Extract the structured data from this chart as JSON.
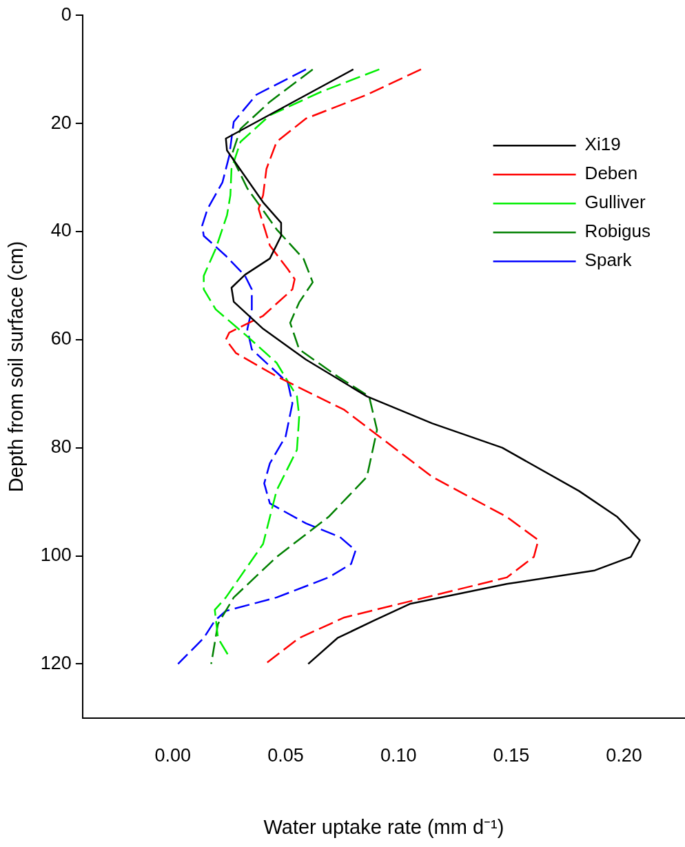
{
  "chart_data": {
    "type": "line",
    "xlabel": "Water uptake rate (mm d⁻¹)",
    "ylabel": "Depth from soil surface (cm)",
    "xlim": [
      -0.04,
      0.227
    ],
    "ylim": [
      130,
      0
    ],
    "xticks": [
      {
        "value": 0,
        "label": "0.00"
      },
      {
        "value": 0.05,
        "label": "0.05"
      },
      {
        "value": 0.1,
        "label": "0.10"
      },
      {
        "value": 0.15,
        "label": "0.15"
      },
      {
        "value": 0.2,
        "label": "0.20"
      }
    ],
    "yticks": [
      0,
      20,
      40,
      60,
      80,
      100,
      120
    ],
    "grid": false,
    "legend": "top right",
    "marker": "none",
    "series": [
      {
        "name": "Xi19",
        "color": "#000000",
        "line_style": "solid",
        "x": [
          0.08,
          0.0235,
          0.024,
          0.04,
          0.048,
          0.048,
          0.043,
          0.032,
          0.026,
          0.027,
          0.04,
          0.059,
          0.086,
          0.115,
          0.146,
          0.18,
          0.197,
          0.207,
          0.203,
          0.187,
          0.148,
          0.105,
          0.089,
          0.073,
          0.06
        ],
        "values": [
          10,
          22.8,
          25,
          34.6,
          38.4,
          40.8,
          45,
          48,
          50.4,
          53,
          58,
          63.7,
          70.5,
          75.5,
          80,
          88,
          92.8,
          97.1,
          100.2,
          102.7,
          105.2,
          108.9,
          112,
          115.2,
          120
        ]
      },
      {
        "name": "Deben",
        "color": "#ff0000",
        "line_style": "dashed",
        "x": [
          0.11,
          0.086,
          0.059,
          0.046,
          0.0415,
          0.04,
          0.038,
          0.043,
          0.051,
          0.054,
          0.053,
          0.04,
          0.025,
          0.0235,
          0.028,
          0.046,
          0.076,
          0.115,
          0.148,
          0.162,
          0.16,
          0.148,
          0.112,
          0.076,
          0.056,
          0.041
        ],
        "values": [
          10,
          14.7,
          19.1,
          23.4,
          28.4,
          33.3,
          35.8,
          42.6,
          47,
          48.8,
          50.7,
          55.6,
          58.7,
          60,
          62.5,
          66.8,
          73,
          85.4,
          92.8,
          97.1,
          100.2,
          104,
          107.7,
          111.4,
          115.2,
          120
        ]
      },
      {
        "name": "Gulliver",
        "color": "#00ee00",
        "line_style": "dashed",
        "x": [
          0.0915,
          0.066,
          0.043,
          0.03,
          0.026,
          0.0255,
          0.024,
          0.019,
          0.0137,
          0.0137,
          0.019,
          0.033,
          0.046,
          0.055,
          0.056,
          0.055,
          0.046,
          0.04,
          0.0235,
          0.0186,
          0.02,
          0.025
        ],
        "values": [
          10,
          14.1,
          18.5,
          23.4,
          28.4,
          33.3,
          37,
          43.2,
          48.2,
          50.7,
          54.4,
          59.4,
          64.3,
          70.5,
          74.2,
          80.4,
          87.9,
          97.8,
          107.7,
          110,
          115.2,
          118.7
        ]
      },
      {
        "name": "Robigus",
        "color": "#008000",
        "line_style": "dashed",
        "x": [
          0.062,
          0.043,
          0.03,
          0.026,
          0.033,
          0.046,
          0.058,
          0.062,
          0.056,
          0.052,
          0.056,
          0.073,
          0.087,
          0.0905,
          0.086,
          0.069,
          0.046,
          0.027,
          0.02,
          0.017
        ],
        "values": [
          10,
          16,
          21,
          26,
          32,
          39.6,
          45.1,
          49.4,
          53.1,
          56.9,
          61.8,
          66.8,
          70.5,
          76.7,
          85.4,
          92.8,
          100.2,
          107.7,
          112.6,
          120
        ]
      },
      {
        "name": "Spark",
        "color": "#0000ff",
        "line_style": "dashed",
        "x": [
          0.059,
          0.037,
          0.027,
          0.025,
          0.022,
          0.0154,
          0.013,
          0.0137,
          0.0235,
          0.032,
          0.035,
          0.035,
          0.033,
          0.035,
          0.043,
          0.051,
          0.053,
          0.05,
          0.043,
          0.0405,
          0.043,
          0.059,
          0.074,
          0.081,
          0.079,
          0.069,
          0.046,
          0.0235,
          0.0186,
          0.0137,
          0.0023
        ],
        "values": [
          10,
          14.7,
          19.7,
          26,
          30.9,
          35.8,
          38.9,
          40.8,
          44.5,
          48.2,
          50.7,
          54.4,
          58.1,
          61.8,
          64.9,
          68,
          71.8,
          77.9,
          82.9,
          86.6,
          90.3,
          94,
          96.5,
          99,
          101.5,
          104,
          107.7,
          110.2,
          112,
          115.2,
          120
        ]
      }
    ]
  }
}
